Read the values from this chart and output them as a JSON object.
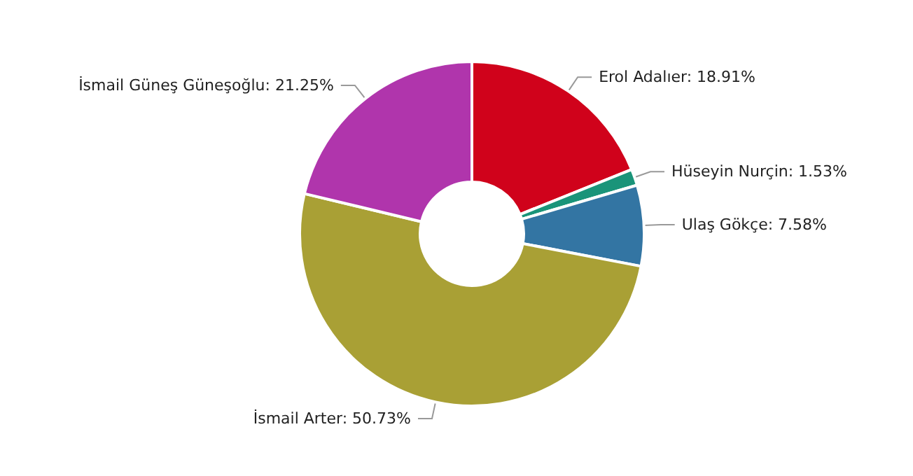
{
  "chart_data": {
    "type": "donut",
    "categories": [
      "Erol Adalıer",
      "Hüseyin Nurçin",
      "Ulaş Gökçe",
      "İsmail Arter",
      "İsmail Güneş Güneşoğlu"
    ],
    "values": [
      18.91,
      1.53,
      7.58,
      50.73,
      21.25
    ],
    "colors": [
      "#d0021b",
      "#1a9479",
      "#3375a3",
      "#a9a035",
      "#b035ac"
    ],
    "value_labels": [
      "18.91%",
      "1.53%",
      "7.58%",
      "50.73%",
      "21.25%"
    ],
    "legend": false
  }
}
